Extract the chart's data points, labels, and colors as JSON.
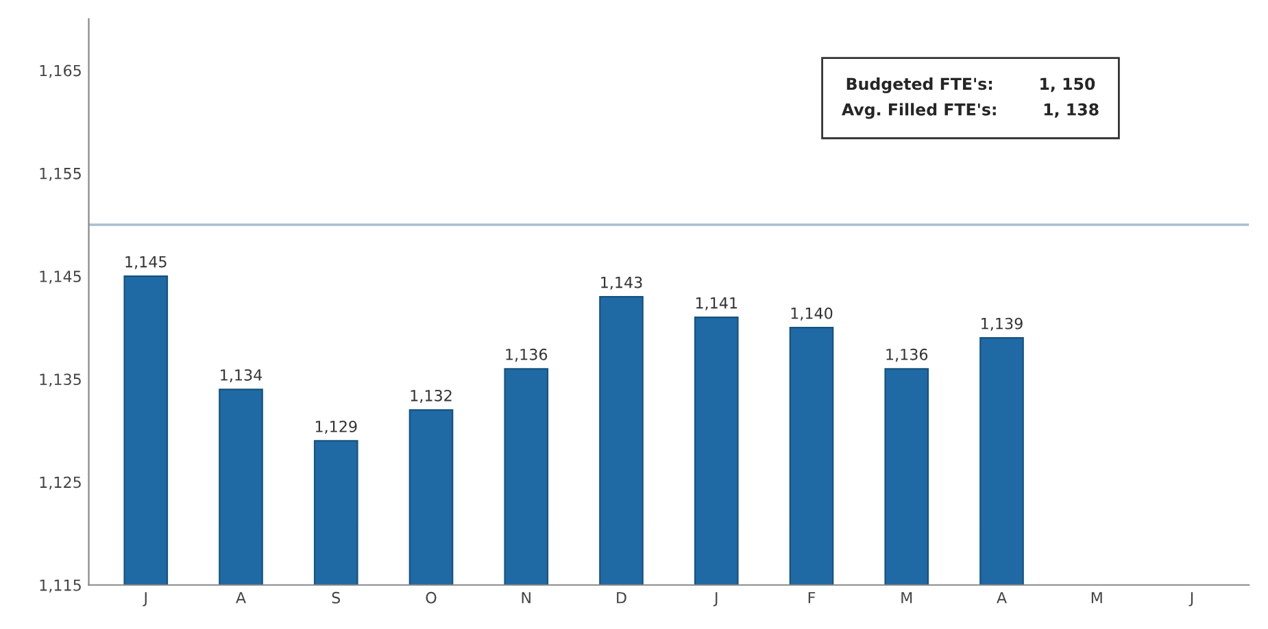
{
  "chart_data": {
    "type": "bar",
    "categories": [
      "J",
      "A",
      "S",
      "O",
      "N",
      "D",
      "J",
      "F",
      "M",
      "A",
      "M",
      "J"
    ],
    "values": [
      1145,
      1134,
      1129,
      1132,
      1136,
      1143,
      1141,
      1140,
      1136,
      1139,
      null,
      null
    ],
    "value_labels": [
      "1,145",
      "1,134",
      "1,129",
      "1,132",
      "1,136",
      "1,143",
      "1,141",
      "1,140",
      "1,136",
      "1,139",
      null,
      null
    ],
    "color": "#1f6aa5",
    "ylim": [
      1115,
      1170
    ],
    "yticks": [
      {
        "value": 1115,
        "label": "1,115"
      },
      {
        "value": 1125,
        "label": "1,125"
      },
      {
        "value": 1135,
        "label": "1,135"
      },
      {
        "value": 1145,
        "label": "1,145"
      },
      {
        "value": 1155,
        "label": "1,155"
      },
      {
        "value": 1165,
        "label": "1,165"
      }
    ],
    "ref_lines": [
      {
        "axis": "y",
        "value": 1150,
        "color": "#a9bdd3"
      }
    ],
    "annotations": [
      "Budgeted FTE's:        1, 150",
      "Avg. Filled FTE's:        1, 138"
    ],
    "grid": false
  }
}
